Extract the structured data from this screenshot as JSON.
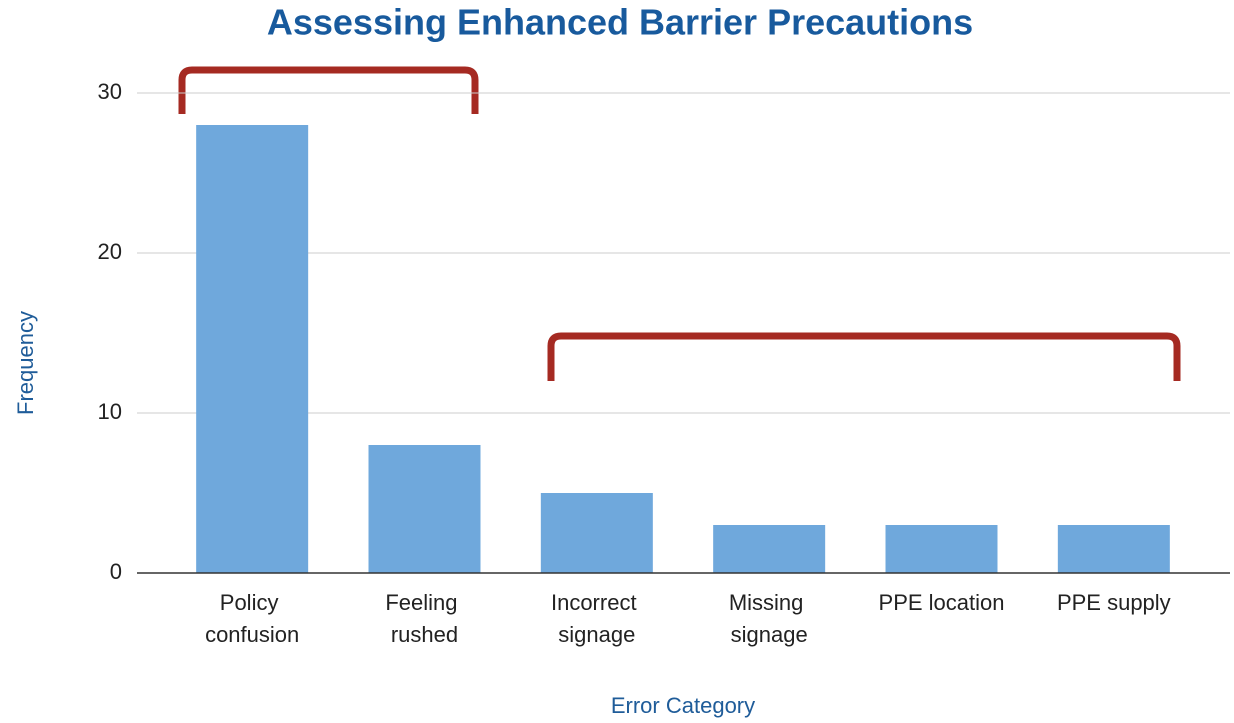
{
  "chart_data": {
    "type": "bar",
    "title": "Assessing Enhanced Barrier Precautions",
    "x_label": "Error Category",
    "y_label": "Frequency",
    "categories": [
      "Policy confusion",
      "Feeling rushed",
      "Incorrect signage",
      "Missing signage",
      "PPE location",
      "PPE supply"
    ],
    "values": [
      28,
      8,
      5,
      3,
      3,
      3
    ],
    "color": "#6fa8dc",
    "ylim": [
      0,
      30
    ],
    "yticks": [
      0,
      10,
      20,
      30
    ],
    "grid": true
  }
}
